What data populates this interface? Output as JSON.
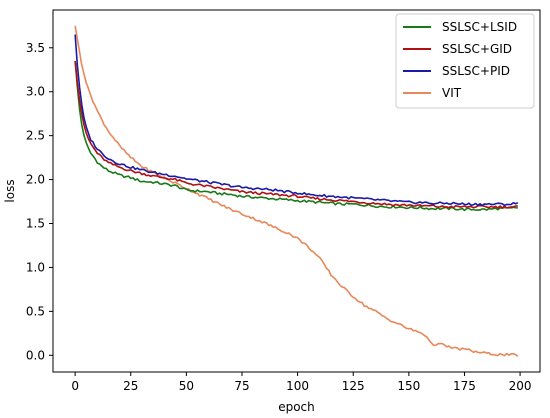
{
  "chart_data": {
    "type": "line",
    "title": "",
    "xlabel": "epoch",
    "ylabel": "loss",
    "xlim": [
      -9.95,
      208.95
    ],
    "ylim": [
      -0.19,
      3.93
    ],
    "xticks": [
      0,
      25,
      50,
      75,
      100,
      125,
      150,
      175,
      200
    ],
    "xtick_labels": [
      "0",
      "25",
      "50",
      "75",
      "100",
      "125",
      "150",
      "175",
      "200"
    ],
    "yticks": [
      0.0,
      0.5,
      1.0,
      1.5,
      2.0,
      2.5,
      3.0,
      3.5
    ],
    "ytick_labels": [
      "0.0",
      "0.5",
      "1.0",
      "1.5",
      "2.0",
      "2.5",
      "3.0",
      "3.5"
    ],
    "grid": false,
    "legend_position": "upper right",
    "series": [
      {
        "name": "SSLSC+LSID",
        "color": "#1a7a1a",
        "points": [
          [
            0,
            3.35
          ],
          [
            1,
            3.05
          ],
          [
            2,
            2.8
          ],
          [
            3,
            2.62
          ],
          [
            4,
            2.5
          ],
          [
            5,
            2.42
          ],
          [
            6,
            2.35
          ],
          [
            7,
            2.3
          ],
          [
            8,
            2.27
          ],
          [
            10,
            2.2
          ],
          [
            12,
            2.15
          ],
          [
            15,
            2.1
          ],
          [
            18,
            2.07
          ],
          [
            20,
            2.05
          ],
          [
            25,
            2.02
          ],
          [
            30,
            1.98
          ],
          [
            35,
            1.97
          ],
          [
            40,
            1.95
          ],
          [
            45,
            1.93
          ],
          [
            50,
            1.88
          ],
          [
            55,
            1.87
          ],
          [
            60,
            1.86
          ],
          [
            65,
            1.84
          ],
          [
            70,
            1.83
          ],
          [
            75,
            1.81
          ],
          [
            80,
            1.8
          ],
          [
            85,
            1.79
          ],
          [
            90,
            1.78
          ],
          [
            95,
            1.77
          ],
          [
            100,
            1.76
          ],
          [
            105,
            1.75
          ],
          [
            110,
            1.74
          ],
          [
            115,
            1.73
          ],
          [
            120,
            1.72
          ],
          [
            125,
            1.72
          ],
          [
            130,
            1.71
          ],
          [
            135,
            1.7
          ],
          [
            140,
            1.69
          ],
          [
            145,
            1.69
          ],
          [
            150,
            1.68
          ],
          [
            155,
            1.68
          ],
          [
            160,
            1.67
          ],
          [
            165,
            1.67
          ],
          [
            170,
            1.67
          ],
          [
            175,
            1.66
          ],
          [
            180,
            1.66
          ],
          [
            185,
            1.66
          ],
          [
            190,
            1.67
          ],
          [
            195,
            1.67
          ],
          [
            199,
            1.68
          ]
        ]
      },
      {
        "name": "SSLSC+GID",
        "color": "#b01010",
        "points": [
          [
            0,
            3.35
          ],
          [
            1,
            3.1
          ],
          [
            2,
            2.9
          ],
          [
            3,
            2.75
          ],
          [
            4,
            2.62
          ],
          [
            5,
            2.53
          ],
          [
            6,
            2.46
          ],
          [
            7,
            2.41
          ],
          [
            8,
            2.37
          ],
          [
            10,
            2.3
          ],
          [
            12,
            2.25
          ],
          [
            15,
            2.19
          ],
          [
            18,
            2.16
          ],
          [
            20,
            2.14
          ],
          [
            25,
            2.1
          ],
          [
            30,
            2.07
          ],
          [
            35,
            2.04
          ],
          [
            40,
            2.02
          ],
          [
            45,
            2.0
          ],
          [
            50,
            1.96
          ],
          [
            55,
            1.94
          ],
          [
            60,
            1.92
          ],
          [
            65,
            1.9
          ],
          [
            70,
            1.88
          ],
          [
            75,
            1.86
          ],
          [
            80,
            1.85
          ],
          [
            85,
            1.84
          ],
          [
            90,
            1.83
          ],
          [
            95,
            1.82
          ],
          [
            100,
            1.81
          ],
          [
            105,
            1.79
          ],
          [
            110,
            1.78
          ],
          [
            115,
            1.77
          ],
          [
            120,
            1.76
          ],
          [
            125,
            1.75
          ],
          [
            130,
            1.74
          ],
          [
            135,
            1.73
          ],
          [
            140,
            1.72
          ],
          [
            145,
            1.71
          ],
          [
            150,
            1.71
          ],
          [
            155,
            1.7
          ],
          [
            160,
            1.7
          ],
          [
            165,
            1.69
          ],
          [
            170,
            1.69
          ],
          [
            175,
            1.69
          ],
          [
            180,
            1.69
          ],
          [
            185,
            1.69
          ],
          [
            190,
            1.69
          ],
          [
            195,
            1.69
          ],
          [
            199,
            1.69
          ]
        ]
      },
      {
        "name": "SSLSC+PID",
        "color": "#1a1aa8",
        "points": [
          [
            0,
            3.65
          ],
          [
            1,
            3.3
          ],
          [
            2,
            3.05
          ],
          [
            3,
            2.85
          ],
          [
            4,
            2.7
          ],
          [
            5,
            2.6
          ],
          [
            6,
            2.52
          ],
          [
            7,
            2.46
          ],
          [
            8,
            2.42
          ],
          [
            10,
            2.35
          ],
          [
            12,
            2.3
          ],
          [
            15,
            2.24
          ],
          [
            18,
            2.2
          ],
          [
            20,
            2.18
          ],
          [
            25,
            2.14
          ],
          [
            30,
            2.11
          ],
          [
            35,
            2.08
          ],
          [
            40,
            2.06
          ],
          [
            45,
            2.04
          ],
          [
            50,
            2.01
          ],
          [
            55,
            1.99
          ],
          [
            60,
            1.97
          ],
          [
            65,
            1.95
          ],
          [
            70,
            1.93
          ],
          [
            75,
            1.91
          ],
          [
            80,
            1.9
          ],
          [
            85,
            1.89
          ],
          [
            90,
            1.88
          ],
          [
            95,
            1.86
          ],
          [
            100,
            1.85
          ],
          [
            105,
            1.83
          ],
          [
            110,
            1.82
          ],
          [
            115,
            1.81
          ],
          [
            120,
            1.8
          ],
          [
            125,
            1.79
          ],
          [
            130,
            1.78
          ],
          [
            135,
            1.77
          ],
          [
            140,
            1.76
          ],
          [
            145,
            1.75
          ],
          [
            150,
            1.74
          ],
          [
            155,
            1.74
          ],
          [
            160,
            1.73
          ],
          [
            165,
            1.73
          ],
          [
            170,
            1.73
          ],
          [
            175,
            1.72
          ],
          [
            180,
            1.72
          ],
          [
            185,
            1.72
          ],
          [
            190,
            1.72
          ],
          [
            195,
            1.72
          ],
          [
            199,
            1.73
          ]
        ]
      },
      {
        "name": "VIT",
        "color": "#e8875a",
        "points": [
          [
            0,
            3.75
          ],
          [
            1,
            3.6
          ],
          [
            2,
            3.45
          ],
          [
            3,
            3.3
          ],
          [
            4,
            3.2
          ],
          [
            5,
            3.1
          ],
          [
            6,
            3.02
          ],
          [
            8,
            2.9
          ],
          [
            10,
            2.78
          ],
          [
            12,
            2.68
          ],
          [
            15,
            2.55
          ],
          [
            18,
            2.45
          ],
          [
            20,
            2.38
          ],
          [
            25,
            2.25
          ],
          [
            30,
            2.15
          ],
          [
            35,
            2.08
          ],
          [
            40,
            2.02
          ],
          [
            45,
            1.96
          ],
          [
            50,
            1.9
          ],
          [
            55,
            1.84
          ],
          [
            60,
            1.78
          ],
          [
            65,
            1.72
          ],
          [
            70,
            1.66
          ],
          [
            75,
            1.61
          ],
          [
            80,
            1.56
          ],
          [
            85,
            1.51
          ],
          [
            90,
            1.45
          ],
          [
            95,
            1.4
          ],
          [
            100,
            1.33
          ],
          [
            105,
            1.23
          ],
          [
            110,
            1.1
          ],
          [
            115,
            0.92
          ],
          [
            120,
            0.78
          ],
          [
            125,
            0.67
          ],
          [
            130,
            0.57
          ],
          [
            135,
            0.5
          ],
          [
            140,
            0.42
          ],
          [
            145,
            0.36
          ],
          [
            150,
            0.3
          ],
          [
            155,
            0.26
          ],
          [
            158,
            0.22
          ],
          [
            160,
            0.13
          ],
          [
            165,
            0.12
          ],
          [
            170,
            0.08
          ],
          [
            175,
            0.07
          ],
          [
            180,
            0.04
          ],
          [
            185,
            0.02
          ],
          [
            190,
            0.01
          ],
          [
            195,
            0.005
          ],
          [
            199,
            0.0
          ]
        ]
      }
    ]
  }
}
